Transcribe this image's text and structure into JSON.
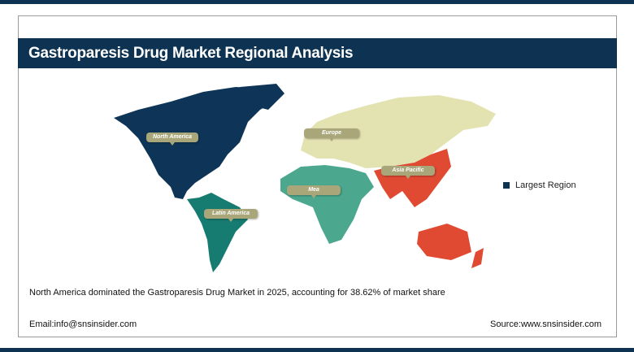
{
  "header": {
    "title": "Gastroparesis Drug Market Regional Analysis"
  },
  "map": {
    "regions": [
      {
        "label": "North America",
        "color": "#0e3557"
      },
      {
        "label": "Europe",
        "color": "#e3e3b2"
      },
      {
        "label": "Asia Pacific",
        "color": "#e04a33"
      },
      {
        "label": "Mea",
        "color": "#4ba88f"
      },
      {
        "label": "Latin America",
        "color": "#167b70"
      }
    ]
  },
  "legend": {
    "label": "Largest Region",
    "color": "#0e3352"
  },
  "summary": "North America dominated the Gastroparesis Drug Market in 2025, accounting for 38.62% of market share",
  "footer": {
    "email": "Email:info@snsinsider.com",
    "source": "Source:www.snsinsider.com"
  }
}
